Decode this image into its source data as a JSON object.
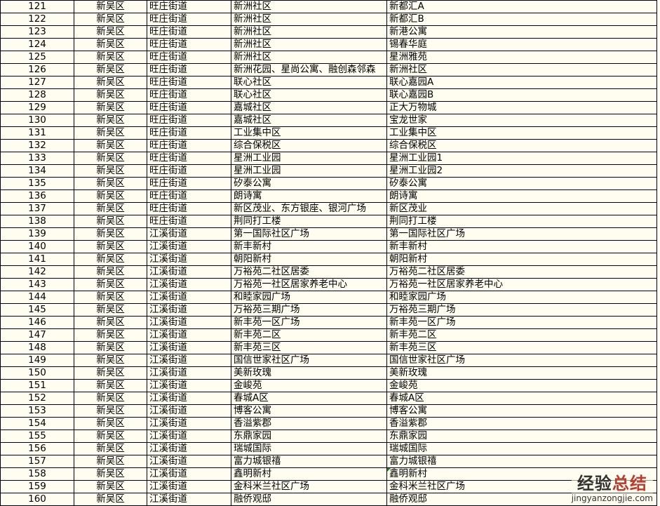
{
  "rows": [
    [
      "121",
      "新吴区",
      "旺庄街道",
      "新洲社区",
      "新都汇A"
    ],
    [
      "122",
      "新吴区",
      "旺庄街道",
      "新洲社区",
      "新都汇B"
    ],
    [
      "123",
      "新吴区",
      "旺庄街道",
      "新洲社区",
      "新港公寓"
    ],
    [
      "124",
      "新吴区",
      "旺庄街道",
      "新洲社区",
      "锡春华庭"
    ],
    [
      "125",
      "新吴区",
      "旺庄街道",
      "新洲社区",
      "星洲雅苑"
    ],
    [
      "126",
      "新吴区",
      "旺庄街道",
      "新洲花园、星尚公寓、融创森邻森",
      "新洲社区"
    ],
    [
      "127",
      "新吴区",
      "旺庄街道",
      "联心社区",
      "联心嘉园A"
    ],
    [
      "128",
      "新吴区",
      "旺庄街道",
      "联心社区",
      "联心嘉园B"
    ],
    [
      "129",
      "新吴区",
      "旺庄街道",
      "嘉城社区",
      "正大万物城"
    ],
    [
      "130",
      "新吴区",
      "旺庄街道",
      "嘉城社区",
      "宝龙世家"
    ],
    [
      "131",
      "新吴区",
      "旺庄街道",
      "工业集中区",
      "工业集中区"
    ],
    [
      "132",
      "新吴区",
      "旺庄街道",
      "综合保税区",
      "综合保税区"
    ],
    [
      "133",
      "新吴区",
      "旺庄街道",
      "星洲工业园",
      "星洲工业园1"
    ],
    [
      "134",
      "新吴区",
      "旺庄街道",
      "星洲工业园",
      "星洲工业园2"
    ],
    [
      "135",
      "新吴区",
      "旺庄街道",
      "矽泰公寓",
      "矽泰公寓"
    ],
    [
      "136",
      "新吴区",
      "旺庄街道",
      "朗诗寓",
      "朗诗寓"
    ],
    [
      "137",
      "新吴区",
      "旺庄街道",
      "新区茂业、东方银座、银河广场",
      "新区茂业"
    ],
    [
      "138",
      "新吴区",
      "旺庄街道",
      "荆同打工楼",
      "荆同打工楼"
    ],
    [
      "139",
      "新吴区",
      "江溪街道",
      "第一国际社区广场",
      "第一国际社区广场"
    ],
    [
      "140",
      "新吴区",
      "江溪街道",
      "新丰新村",
      "新丰新村"
    ],
    [
      "141",
      "新吴区",
      "江溪街道",
      "朝阳新村",
      "朝阳新村"
    ],
    [
      "142",
      "新吴区",
      "江溪街道",
      "万裕苑二社区居委",
      "万裕苑二社区居委"
    ],
    [
      "143",
      "新吴区",
      "江溪街道",
      "万裕苑一社区居家养老中心",
      "万裕苑一社区居家养老中心"
    ],
    [
      "144",
      "新吴区",
      "江溪街道",
      "和睦家园广场",
      "和睦家园广场"
    ],
    [
      "145",
      "新吴区",
      "江溪街道",
      "万裕苑三期广场",
      "万裕苑三期广场"
    ],
    [
      "146",
      "新吴区",
      "江溪街道",
      "新丰苑一区广场",
      "新丰苑一区广场"
    ],
    [
      "147",
      "新吴区",
      "江溪街道",
      "新丰苑二区",
      "新丰苑二区"
    ],
    [
      "148",
      "新吴区",
      "江溪街道",
      "新丰苑三区",
      "新丰苑三区"
    ],
    [
      "149",
      "新吴区",
      "江溪街道",
      "国信世家社区广场",
      "国信世家社区广场"
    ],
    [
      "150",
      "新吴区",
      "江溪街道",
      "美新玫瑰",
      "美新玫瑰"
    ],
    [
      "151",
      "新吴区",
      "江溪街道",
      "金峻苑",
      "金峻苑"
    ],
    [
      "152",
      "新吴区",
      "江溪街道",
      "春城A区",
      "春城A区"
    ],
    [
      "153",
      "新吴区",
      "江溪街道",
      "博客公寓",
      "博客公寓"
    ],
    [
      "154",
      "新吴区",
      "江溪街道",
      "香溢紫郡",
      "香溢紫郡"
    ],
    [
      "155",
      "新吴区",
      "江溪街道",
      "东鼎家园",
      "东鼎家园"
    ],
    [
      "156",
      "新吴区",
      "江溪街道",
      "瑞城国际",
      "瑞城国际"
    ],
    [
      "157",
      "新吴区",
      "江溪街道",
      "富力城银禧",
      "富力城银禧"
    ],
    [
      "158",
      "新吴区",
      "江溪街道",
      "鑫明新村",
      "鑫明新村"
    ],
    [
      "159",
      "新吴区",
      "江溪街道",
      "金科米兰社区广场",
      "金科米兰社区广场"
    ],
    [
      "160",
      "新吴区",
      "江溪街道",
      "融侨观邸",
      "融侨观邸"
    ]
  ],
  "watermark": {
    "cn_a": "经验",
    "cn_b": "总结",
    "en": "jingyanzongjie.com"
  },
  "colors": {
    "cell_bg": "#fffdf0",
    "grid": "#000000",
    "comment_marker": "#1a8a1a"
  }
}
